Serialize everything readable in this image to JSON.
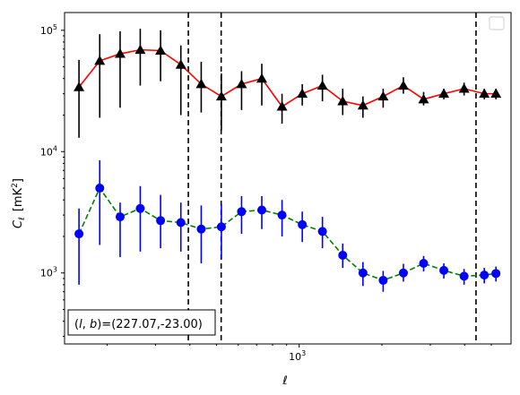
{
  "chart_data": {
    "type": "line",
    "xscale": "log",
    "yscale": "log",
    "xlim": [
      140,
      5900
    ],
    "ylim": [
      260,
      140000
    ],
    "xlabel_main": "ℓ",
    "ylabel_main": "C",
    "ylabel_sub": "ℓ",
    "ylabel_unit": "[mK",
    "ylabel_unit_sup": "2",
    "ylabel_unit_close": "]",
    "x_major_ticks": [
      {
        "value": 1000,
        "base": "10",
        "exp": "3"
      }
    ],
    "y_major_ticks": [
      {
        "value": 1000,
        "base": "10",
        "exp": "3"
      },
      {
        "value": 10000,
        "base": "10",
        "exp": "4"
      },
      {
        "value": 100000,
        "base": "10",
        "exp": "5"
      }
    ],
    "annotation": {
      "prefix": "(",
      "var1": "l",
      "comma": ", ",
      "var2": "b",
      "suffix": ")=(227.07,-23.00)"
    },
    "legend": {
      "placement": "top-right",
      "entries": []
    },
    "vlines": [
      395,
      520,
      4400
    ],
    "series": [
      {
        "color": "#ff0000",
        "marker": "triangle",
        "marker_color": "#000000",
        "linestyle": "solid",
        "x": [
          158,
          188,
          223,
          264,
          313,
          371,
          440,
          521,
          617,
          731,
          866,
          1026,
          1215,
          1440,
          1706,
          2021,
          2394,
          2836,
          3360,
          3981,
          4716,
          5200
        ],
        "y": [
          34000,
          56000,
          64000,
          69000,
          68000,
          52000,
          36000,
          28500,
          36000,
          40000,
          23500,
          30000,
          35000,
          26000,
          24000,
          28500,
          35000,
          27000,
          30000,
          33000,
          30000,
          30000
        ],
        "yerr_low": [
          13000,
          19000,
          23000,
          35000,
          38000,
          20000,
          21000,
          15000,
          22000,
          24000,
          17000,
          24000,
          26000,
          20000,
          19000,
          23000,
          30000,
          24000,
          27000,
          29000,
          27000,
          27000
        ],
        "yerr_high": [
          57000,
          93000,
          98000,
          103000,
          100000,
          75000,
          55000,
          44000,
          46000,
          53000,
          30000,
          36000,
          43000,
          33000,
          28500,
          33000,
          41000,
          31000,
          33000,
          37000,
          33000,
          33000
        ]
      },
      {
        "color": "#008000",
        "marker": "circle",
        "marker_color": "#0000ff",
        "linestyle": "dashed",
        "x": [
          158,
          188,
          223,
          264,
          313,
          371,
          440,
          521,
          617,
          731,
          866,
          1026,
          1215,
          1440,
          1706,
          2021,
          2394,
          2836,
          3360,
          3981,
          4716,
          5200
        ],
        "y": [
          2100,
          5000,
          2900,
          3400,
          2700,
          2600,
          2300,
          2400,
          3200,
          3300,
          3000,
          2500,
          2200,
          1400,
          1000,
          870,
          1000,
          1200,
          1050,
          940,
          960,
          990
        ],
        "yerr_low": [
          800,
          1700,
          1350,
          1500,
          1600,
          1500,
          1200,
          1300,
          2100,
          2300,
          2000,
          1800,
          1600,
          1100,
          780,
          700,
          850,
          1030,
          900,
          800,
          820,
          850
        ],
        "yerr_high": [
          3400,
          8500,
          3800,
          5200,
          4400,
          3800,
          3600,
          3700,
          4300,
          4300,
          4000,
          3200,
          2900,
          1750,
          1230,
          1040,
          1190,
          1380,
          1200,
          1080,
          1100,
          1130
        ]
      }
    ]
  }
}
